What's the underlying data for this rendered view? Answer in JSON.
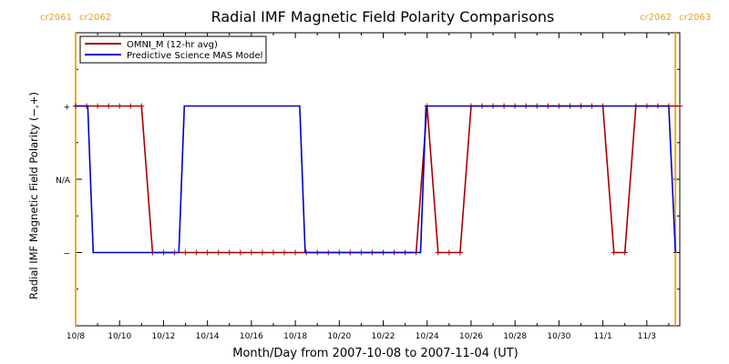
{
  "chart_data": {
    "type": "line",
    "title": "Radial IMF Magnetic Field Polarity Comparisons",
    "xlabel": "Month/Day from 2007-10-08 to 2007-11-04 (UT)",
    "ylabel": "Radial IMF Magnetic Field Polarity (−,+)",
    "x_ticks": [
      "10/8",
      "10/10",
      "10/12",
      "10/14",
      "10/16",
      "10/18",
      "10/20",
      "10/22",
      "10/24",
      "10/26",
      "10/28",
      "10/30",
      "11/1",
      "11/3"
    ],
    "y_ticks": [
      "+",
      "N/A",
      "−"
    ],
    "xlim": [
      0,
      27.5
    ],
    "ylim": [
      -2,
      2
    ],
    "grid": false,
    "legend_placement": "top-left",
    "carrington_markers": [
      {
        "day": 0.0,
        "left_label": "cr2061",
        "right_label": "cr2062"
      },
      {
        "day": 27.3,
        "left_label": "cr2062",
        "right_label": "cr2063"
      }
    ],
    "series": [
      {
        "name": "OMNI_M (12-hr avg)",
        "color": "#aa0000",
        "marker": "+",
        "x": [
          0.0,
          0.5,
          1.0,
          1.5,
          2.0,
          2.5,
          3.0,
          3.5,
          4.0,
          4.5,
          5.0,
          5.5,
          6.0,
          6.5,
          7.0,
          7.5,
          8.0,
          8.5,
          9.0,
          9.5,
          10.0,
          10.5,
          11.0,
          11.5,
          12.0,
          12.5,
          13.0,
          13.5,
          14.0,
          14.5,
          15.0,
          15.5,
          16.0,
          16.5,
          17.0,
          17.5,
          18.0,
          18.5,
          19.0,
          19.5,
          20.0,
          20.5,
          21.0,
          21.5,
          22.0,
          22.5,
          23.0,
          23.5,
          24.0,
          24.5,
          25.0,
          25.5,
          26.0,
          26.5,
          27.0,
          27.5
        ],
        "y": [
          1,
          1,
          1,
          1,
          1,
          1,
          1,
          -1,
          -1,
          -1,
          -1,
          -1,
          -1,
          -1,
          -1,
          -1,
          -1,
          -1,
          -1,
          -1,
          -1,
          -1,
          -1,
          -1,
          -1,
          -1,
          -1,
          -1,
          -1,
          -1,
          -1,
          -1,
          1,
          -1,
          -1,
          -1,
          1,
          1,
          1,
          1,
          1,
          1,
          1,
          1,
          1,
          1,
          1,
          1,
          1,
          -1,
          -1,
          1,
          1,
          1,
          1,
          1
        ]
      },
      {
        "name": "Predictive Science MAS Model",
        "color": "#0000cc",
        "marker": "",
        "x": [
          0.0,
          0.55,
          0.8,
          4.7,
          4.95,
          10.2,
          10.45,
          15.7,
          15.95,
          27.0,
          27.3
        ],
        "y": [
          1,
          1,
          -1,
          -1,
          1,
          1,
          -1,
          -1,
          1,
          1,
          -1
        ]
      }
    ]
  }
}
